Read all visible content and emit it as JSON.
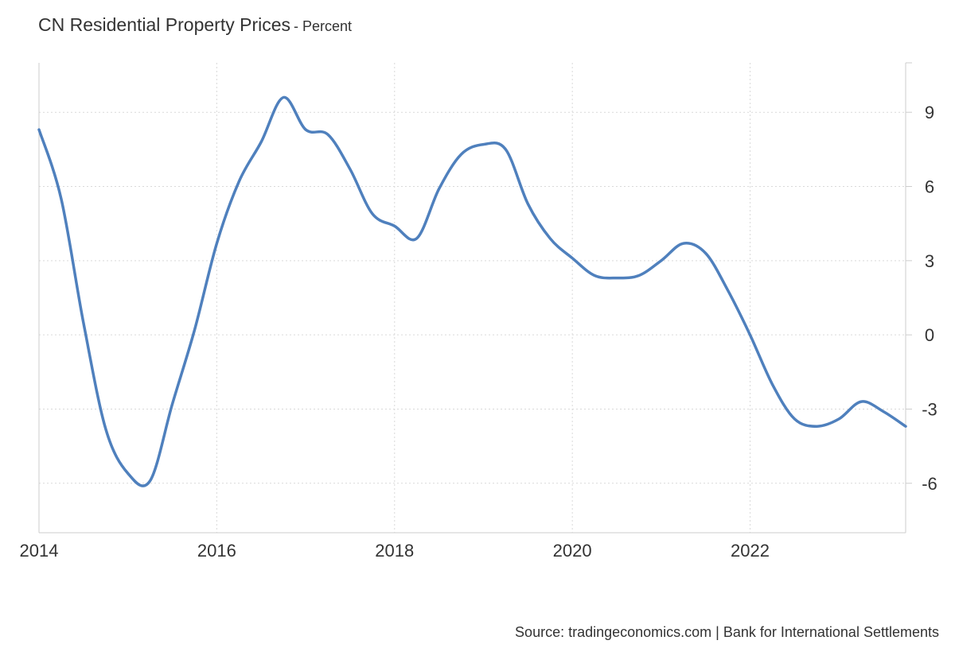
{
  "header": {
    "title": "CN Residential Property Prices",
    "subtitle": "- Percent"
  },
  "footer": {
    "source": "Source: tradingeconomics.com | Bank for International Settlements"
  },
  "colors": {
    "line": "#4f80bd",
    "grid": "#d9d9d9",
    "axis": "#cccccc"
  },
  "chart_data": {
    "type": "line",
    "title": "CN Residential Property Prices",
    "subtitle": "- Percent",
    "xlabel": "",
    "ylabel": "",
    "x_ticks": [
      "2014",
      "2016",
      "2018",
      "2020",
      "2022"
    ],
    "y_ticks": [
      9,
      6,
      3,
      0,
      -3,
      -6
    ],
    "y_axis_side": "right",
    "xlim": [
      2014.0,
      2023.75
    ],
    "ylim": [
      -8.0,
      11.0
    ],
    "grid": true,
    "series": [
      {
        "x": [
          2014.0,
          2014.25,
          2014.5,
          2014.75,
          2015.0,
          2015.25,
          2015.5,
          2015.75,
          2016.0,
          2016.25,
          2016.5,
          2016.75,
          2017.0,
          2017.25,
          2017.5,
          2017.75,
          2018.0,
          2018.25,
          2018.5,
          2018.75,
          2019.0,
          2019.25,
          2019.5,
          2019.75,
          2020.0,
          2020.25,
          2020.5,
          2020.75,
          2021.0,
          2021.25,
          2021.5,
          2021.75,
          2022.0,
          2022.25,
          2022.5,
          2022.75,
          2023.0,
          2023.25,
          2023.5,
          2023.75
        ],
        "values": [
          8.3,
          5.5,
          0.5,
          -3.8,
          -5.6,
          -5.9,
          -2.8,
          0.2,
          3.7,
          6.2,
          7.8,
          9.6,
          8.3,
          8.1,
          6.7,
          4.9,
          4.4,
          3.9,
          5.9,
          7.3,
          7.7,
          7.5,
          5.3,
          3.9,
          3.1,
          2.4,
          2.3,
          2.4,
          3.0,
          3.7,
          3.3,
          1.8,
          0.0,
          -2.0,
          -3.4,
          -3.7,
          -3.4,
          -2.7,
          -3.1,
          -3.7
        ]
      }
    ]
  }
}
